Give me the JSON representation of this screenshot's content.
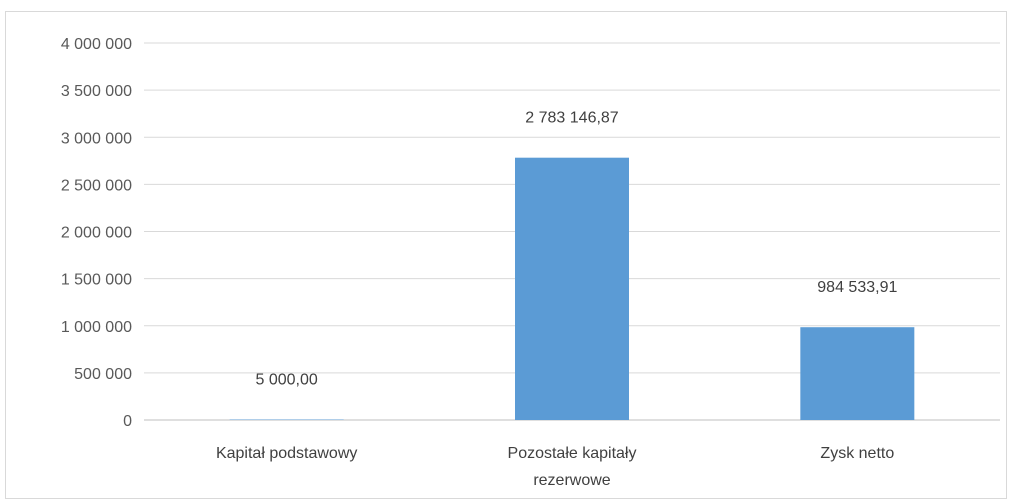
{
  "chart_data": {
    "type": "bar",
    "categories": [
      "Kapitał podstawowy",
      "Pozostałe kapitały rezerwowe",
      "Zysk netto"
    ],
    "category_label_lines": [
      [
        "Kapitał podstawowy"
      ],
      [
        "Pozostałe kapitały",
        "rezerwowe"
      ],
      [
        "Zysk netto"
      ]
    ],
    "values": [
      5000,
      2783146.87,
      984533.91
    ],
    "data_labels": [
      "5 000,00",
      "2 783 146,87",
      "984 533,91"
    ],
    "ylim": [
      0,
      4000000
    ],
    "yticks": [
      0,
      500000,
      1000000,
      1500000,
      2000000,
      2500000,
      3000000,
      3500000,
      4000000
    ],
    "ytick_labels": [
      "0",
      "500 000",
      "1 000 000",
      "1 500 000",
      "2 000 000",
      "2 500 000",
      "3 000 000",
      "3 500 000",
      "4 000 000"
    ],
    "title": "",
    "xlabel": "",
    "ylabel": "",
    "grid": true,
    "legend": "none",
    "bar_color": "#5b9bd5"
  }
}
